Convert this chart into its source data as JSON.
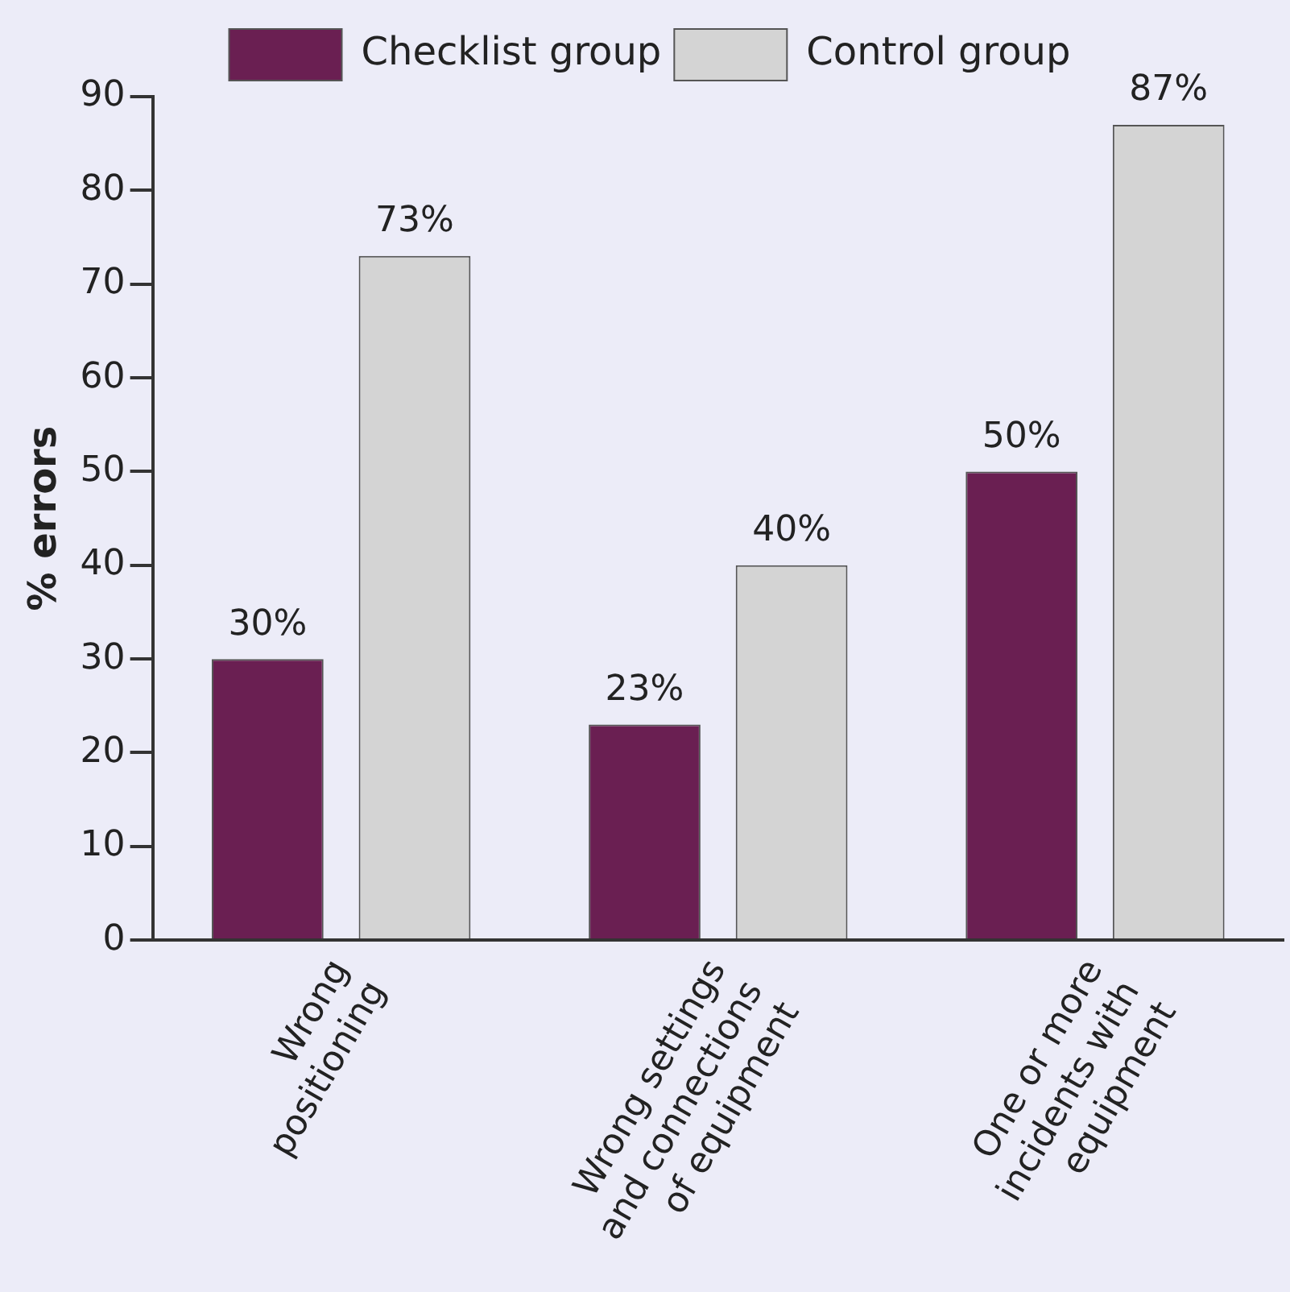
{
  "chart_data": {
    "type": "bar",
    "ylabel": "% errors",
    "categories": [
      "Wrong positioning",
      "Wrong settings and connections of equipment",
      "One or more incidents with equipment"
    ],
    "series": [
      {
        "name": "Checklist group",
        "color": "#6a1f52",
        "values": [
          30,
          23,
          50
        ],
        "value_labels": [
          "30%",
          "23%",
          "50%"
        ]
      },
      {
        "name": "Control group",
        "color": "#d4d4d4",
        "values": [
          73,
          40,
          87
        ],
        "value_labels": [
          "73%",
          "40%",
          "87%"
        ]
      }
    ],
    "ylim": [
      0,
      90
    ],
    "yticks": [
      0,
      10,
      20,
      30,
      40,
      50,
      60,
      70,
      80,
      90
    ],
    "grid": false,
    "legend": "top"
  }
}
